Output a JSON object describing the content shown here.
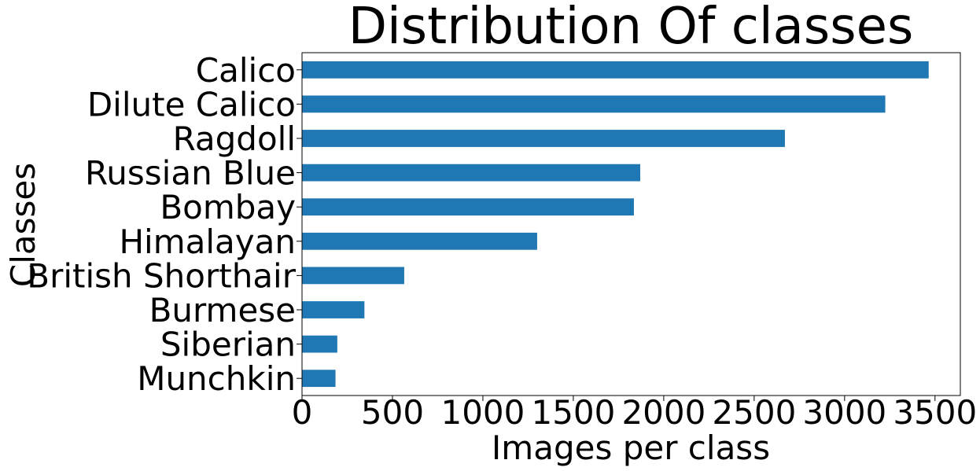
{
  "chart_data": {
    "type": "bar",
    "orientation": "horizontal",
    "title": "Distribution Of classes",
    "xlabel": "Images per class",
    "ylabel": "Classes",
    "categories": [
      "Calico",
      "Dilute Calico",
      "Ragdoll",
      "Russian Blue",
      "Bombay",
      "Himalayan",
      "British Shorthair",
      "Burmese",
      "Siberian",
      "Munchkin"
    ],
    "values": [
      3465,
      3225,
      2670,
      1870,
      1835,
      1300,
      565,
      345,
      195,
      185
    ],
    "xlim": [
      0,
      3640
    ],
    "xticks": [
      0,
      500,
      1000,
      1500,
      2000,
      2500,
      3000,
      3500
    ],
    "bar_color": "#1f77b4",
    "grid": false,
    "legend": "none"
  }
}
